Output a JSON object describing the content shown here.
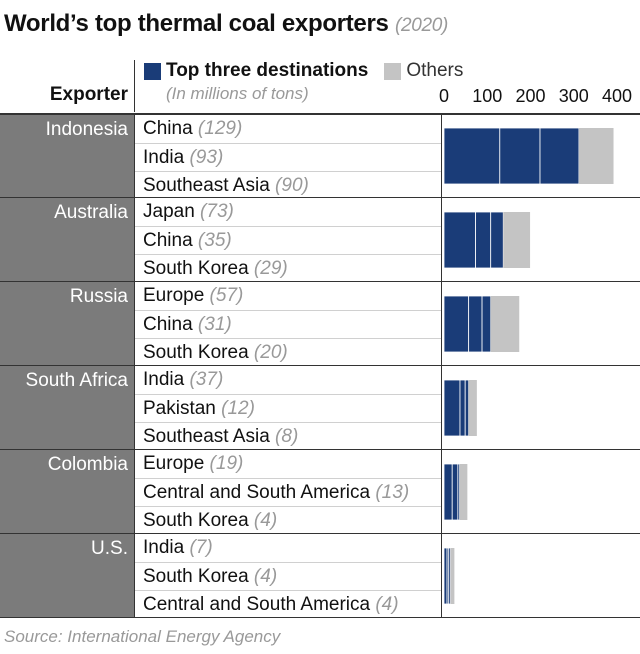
{
  "title": "World’s top thermal coal exporters",
  "title_year": "(2020)",
  "header": {
    "exporter_label": "Exporter"
  },
  "legend": {
    "top_label": "Top three destinations",
    "others_label": "Others",
    "units": "(In millions of tons)"
  },
  "colors": {
    "top": "#1a3c78",
    "others": "#c4c4c4",
    "exporter_bg": "#7b7b7b"
  },
  "source": "Source: International Energy Agency",
  "chart_data": {
    "type": "bar",
    "orientation": "horizontal",
    "stacked": true,
    "xlim": [
      0,
      400
    ],
    "xticks": [
      "0",
      "100",
      "200",
      "300",
      "400"
    ],
    "xtick_values": [
      0,
      100,
      200,
      300,
      400
    ],
    "groups": [
      {
        "exporter": "Indonesia",
        "destinations": [
          {
            "name": "China",
            "value": 129
          },
          {
            "name": "India",
            "value": 93
          },
          {
            "name": "Southeast Asia",
            "value": 90
          }
        ],
        "others": 80
      },
      {
        "exporter": "Australia",
        "destinations": [
          {
            "name": "Japan",
            "value": 73
          },
          {
            "name": "China",
            "value": 35
          },
          {
            "name": "South Korea",
            "value": 29
          }
        ],
        "others": 62
      },
      {
        "exporter": "Russia",
        "destinations": [
          {
            "name": "Europe",
            "value": 57
          },
          {
            "name": "China",
            "value": 31
          },
          {
            "name": "South Korea",
            "value": 20
          }
        ],
        "others": 66
      },
      {
        "exporter": "South Africa",
        "destinations": [
          {
            "name": "India",
            "value": 37
          },
          {
            "name": "Pakistan",
            "value": 12
          },
          {
            "name": "Southeast Asia",
            "value": 8
          }
        ],
        "others": 19
      },
      {
        "exporter": "Colombia",
        "destinations": [
          {
            "name": "Europe",
            "value": 19
          },
          {
            "name": "Central and South America",
            "value": 13
          },
          {
            "name": "South Korea",
            "value": 4
          }
        ],
        "others": 18
      },
      {
        "exporter": "U.S.",
        "destinations": [
          {
            "name": "India",
            "value": 7
          },
          {
            "name": "South Korea",
            "value": 4
          },
          {
            "name": "Central and South America",
            "value": 4
          }
        ],
        "others": 9
      }
    ]
  }
}
